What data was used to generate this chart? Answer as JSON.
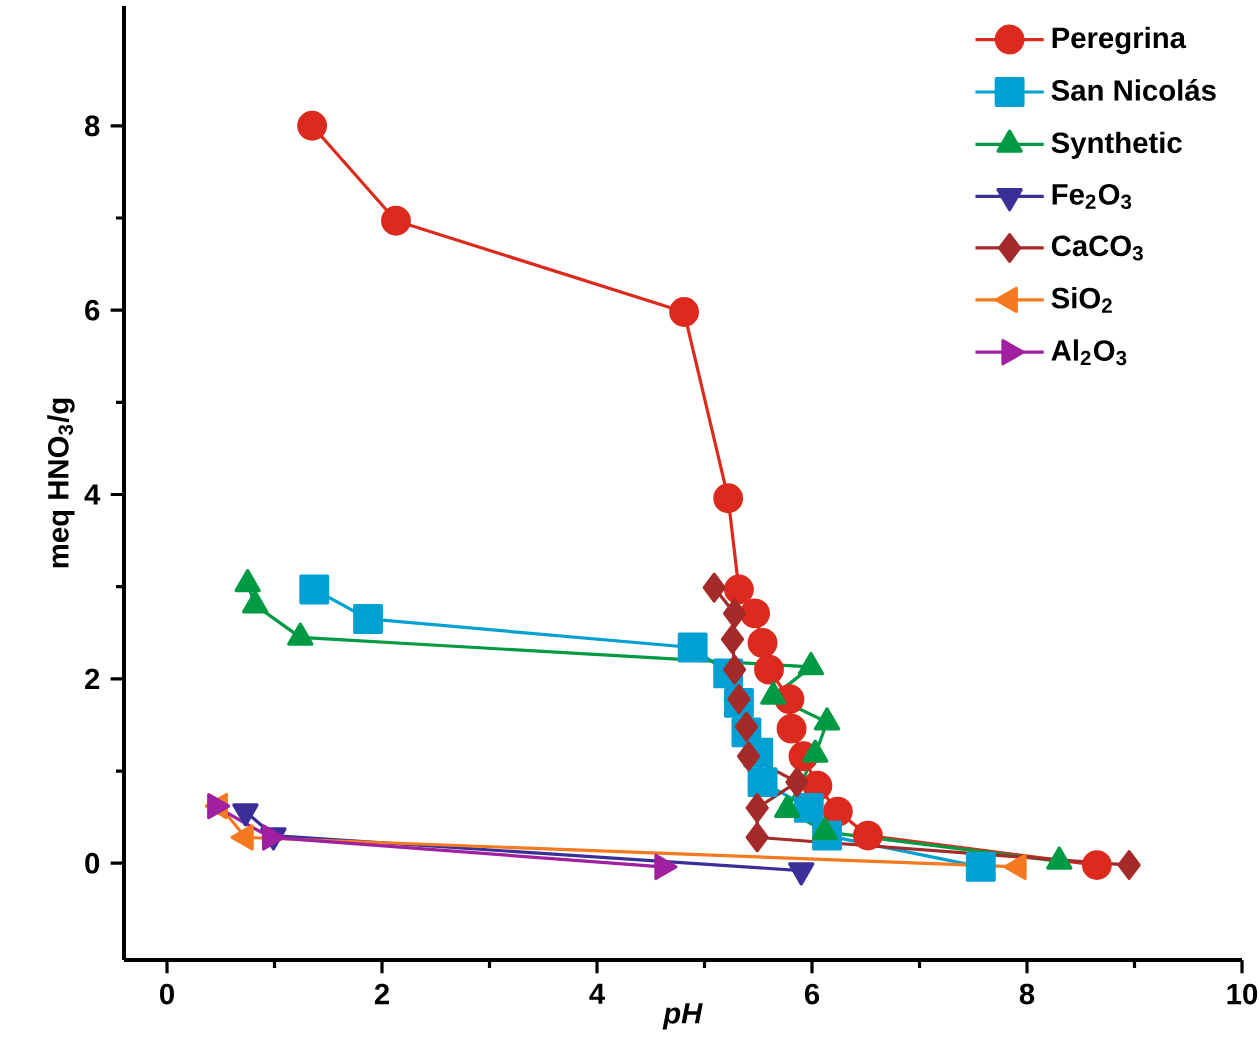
{
  "chart_data": {
    "type": "line",
    "xlabel": "*pH*",
    "ylabel": "meq HNO$_{3}$/g",
    "xlim": [
      -0.4,
      10
    ],
    "ylim": [
      -1.05,
      9.3
    ],
    "xticks": [
      0,
      2,
      4,
      6,
      8,
      10
    ],
    "yticks": [
      0,
      2,
      4,
      6,
      8
    ],
    "legend": "top right",
    "grid": false,
    "line_style": "solid",
    "series": [
      {
        "name": "Peregrina",
        "color": "#dc2a1e",
        "marker": "circle",
        "x": [
          1.35,
          2.13,
          4.81,
          5.22,
          5.32,
          5.47,
          5.54,
          5.6,
          5.79,
          5.81,
          5.92,
          6.05,
          6.24,
          6.52,
          8.65
        ],
        "values": [
          8.0,
          6.97,
          5.98,
          3.96,
          2.97,
          2.71,
          2.39,
          2.1,
          1.78,
          1.46,
          1.16,
          0.84,
          0.56,
          0.3,
          -0.02
        ]
      },
      {
        "name": "San Nicolás",
        "color": "#00a0d2",
        "marker": "square",
        "x": [
          1.37,
          1.87,
          4.89,
          5.22,
          5.32,
          5.39,
          5.5,
          5.54,
          5.97,
          6.14,
          7.57
        ],
        "values": [
          2.97,
          2.65,
          2.34,
          2.06,
          1.74,
          1.42,
          1.2,
          0.88,
          0.6,
          0.3,
          -0.04
        ]
      },
      {
        "name": "Synthetic",
        "color": "#009a44",
        "marker": "triangle",
        "x": [
          0.75,
          0.82,
          1.24,
          5.99,
          5.64,
          6.14,
          6.03,
          5.77,
          6.12,
          8.3
        ],
        "values": [
          3.03,
          2.8,
          2.45,
          2.13,
          1.81,
          1.53,
          1.18,
          0.58,
          0.34,
          0.02
        ]
      },
      {
        "name": "Fe$_{2}$O$_{3}$",
        "color": "#3a2f98",
        "marker": "triangle-down",
        "x": [
          0.73,
          0.99,
          5.9
        ],
        "values": [
          0.56,
          0.3,
          -0.08
        ]
      },
      {
        "name": "CaCO$_{3}$",
        "color": "#a52a2a",
        "marker": "diamond",
        "x": [
          5.09,
          5.28,
          5.26,
          5.28,
          5.32,
          5.39,
          5.41,
          5.86,
          5.49,
          5.49,
          8.95
        ],
        "values": [
          2.99,
          2.71,
          2.43,
          2.1,
          1.78,
          1.48,
          1.16,
          0.88,
          0.6,
          0.28,
          -0.02
        ]
      },
      {
        "name": "SiO$_{2}$",
        "color": "#f47920",
        "marker": "triangle-left",
        "x": [
          0.49,
          0.73,
          7.92
        ],
        "values": [
          0.62,
          0.28,
          -0.04
        ]
      },
      {
        "name": "Al$_{2}$O$_{3}$",
        "color": "#a020a0",
        "marker": "triangle-right",
        "x": [
          0.45,
          0.96,
          4.61
        ],
        "values": [
          0.62,
          0.28,
          -0.04
        ]
      }
    ]
  }
}
